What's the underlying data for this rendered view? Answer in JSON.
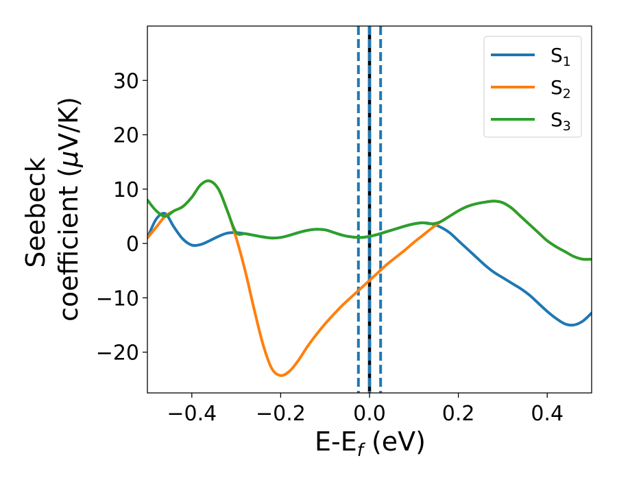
{
  "chart_data": {
    "type": "line",
    "xlabel": {
      "main": "E-E",
      "sub": "f",
      "unit": " (eV)"
    },
    "ylabel": {
      "line1": "Seebeck",
      "line2_pre": "coefficient  (",
      "mu": "μ",
      "line2_post": "V/K)"
    },
    "xlim": [
      -0.5,
      0.5
    ],
    "ylim": [
      -27.5,
      40
    ],
    "xticks": [
      -0.4,
      -0.2,
      0.0,
      0.2,
      0.4
    ],
    "xtick_labels": [
      "−0.4",
      "−0.2",
      "0.0",
      "0.2",
      "0.4"
    ],
    "yticks": [
      -20,
      -10,
      0,
      10,
      20,
      30
    ],
    "ytick_labels": [
      "−20",
      "−10",
      "0",
      "10",
      "20",
      "30"
    ],
    "legend_position": "top-right",
    "vlines": [
      {
        "x": -0.025,
        "style": "dashed",
        "color": "#1f77b4"
      },
      {
        "x": 0.0,
        "style": "solid",
        "color": "#000000"
      },
      {
        "x": 0.0,
        "style": "dashed",
        "color": "#1f77b4"
      },
      {
        "x": 0.025,
        "style": "dashed",
        "color": "#1f77b4"
      }
    ],
    "series": [
      {
        "name": "S",
        "sub": "1",
        "color": "#1f77b4",
        "points": [
          [
            -0.5,
            1
          ],
          [
            -0.48,
            4.5
          ],
          [
            -0.46,
            5.5
          ],
          [
            -0.44,
            3
          ],
          [
            -0.42,
            0.8
          ],
          [
            -0.4,
            -0.3
          ],
          [
            -0.38,
            -0.2
          ],
          [
            -0.36,
            0.5
          ],
          [
            -0.34,
            1.3
          ],
          [
            -0.32,
            1.9
          ],
          [
            -0.3,
            2
          ],
          [
            -0.28,
            1.8
          ],
          [
            -0.26,
            1.5
          ],
          [
            -0.24,
            1.2
          ],
          [
            -0.22,
            1
          ],
          [
            -0.2,
            1.1
          ],
          [
            -0.18,
            1.5
          ],
          [
            -0.16,
            2
          ],
          [
            -0.14,
            2.4
          ],
          [
            -0.12,
            2.6
          ],
          [
            -0.1,
            2.5
          ],
          [
            -0.08,
            2
          ],
          [
            -0.06,
            1.5
          ],
          [
            -0.04,
            1.2
          ],
          [
            -0.02,
            1.1
          ],
          [
            0,
            1.3
          ],
          [
            0.02,
            1.7
          ],
          [
            0.04,
            2.2
          ],
          [
            0.06,
            2.7
          ],
          [
            0.08,
            3.2
          ],
          [
            0.1,
            3.6
          ],
          [
            0.12,
            3.8
          ],
          [
            0.14,
            3.6
          ],
          [
            0.16,
            3
          ],
          [
            0.18,
            2
          ],
          [
            0.2,
            0.5
          ],
          [
            0.22,
            -1
          ],
          [
            0.24,
            -2.5
          ],
          [
            0.26,
            -4
          ],
          [
            0.28,
            -5.3
          ],
          [
            0.3,
            -6.3
          ],
          [
            0.32,
            -7.3
          ],
          [
            0.34,
            -8.3
          ],
          [
            0.36,
            -9.5
          ],
          [
            0.38,
            -11
          ],
          [
            0.4,
            -12.5
          ],
          [
            0.42,
            -13.8
          ],
          [
            0.44,
            -14.8
          ],
          [
            0.46,
            -15
          ],
          [
            0.48,
            -14.3
          ],
          [
            0.5,
            -12.8
          ]
        ]
      },
      {
        "name": "S",
        "sub": "2",
        "color": "#ff7f0e",
        "points": [
          [
            -0.5,
            1
          ],
          [
            -0.48,
            3
          ],
          [
            -0.46,
            5
          ],
          [
            -0.44,
            6
          ],
          [
            -0.42,
            6.8
          ],
          [
            -0.4,
            8.5
          ],
          [
            -0.38,
            10.8
          ],
          [
            -0.36,
            11.5
          ],
          [
            -0.34,
            10
          ],
          [
            -0.32,
            6
          ],
          [
            -0.3,
            1
          ],
          [
            -0.28,
            -5
          ],
          [
            -0.26,
            -12
          ],
          [
            -0.24,
            -18.5
          ],
          [
            -0.22,
            -23
          ],
          [
            -0.2,
            -24.3
          ],
          [
            -0.18,
            -23.5
          ],
          [
            -0.16,
            -21.5
          ],
          [
            -0.14,
            -19
          ],
          [
            -0.12,
            -16.8
          ],
          [
            -0.1,
            -14.8
          ],
          [
            -0.08,
            -13
          ],
          [
            -0.06,
            -11.3
          ],
          [
            -0.04,
            -9.8
          ],
          [
            -0.02,
            -8.3
          ],
          [
            0,
            -6.8
          ],
          [
            0.02,
            -5.3
          ],
          [
            0.04,
            -3.8
          ],
          [
            0.06,
            -2.5
          ],
          [
            0.08,
            -1.2
          ],
          [
            0.1,
            0.2
          ],
          [
            0.12,
            1.5
          ],
          [
            0.14,
            2.8
          ],
          [
            0.16,
            4
          ],
          [
            0.18,
            5
          ],
          [
            0.2,
            6
          ],
          [
            0.22,
            6.8
          ],
          [
            0.24,
            7.3
          ],
          [
            0.26,
            7.6
          ],
          [
            0.28,
            7.8
          ],
          [
            0.3,
            7.5
          ],
          [
            0.32,
            6.5
          ],
          [
            0.34,
            5
          ],
          [
            0.36,
            3.5
          ],
          [
            0.38,
            2
          ],
          [
            0.4,
            0.5
          ],
          [
            0.42,
            -0.6
          ],
          [
            0.44,
            -1.5
          ],
          [
            0.46,
            -2.4
          ],
          [
            0.48,
            -2.9
          ],
          [
            0.5,
            -2.9
          ]
        ]
      },
      {
        "name": "S",
        "sub": "3",
        "color": "#2ca02c",
        "points": [
          [
            -0.5,
            8
          ],
          [
            -0.48,
            6
          ],
          [
            -0.46,
            5
          ],
          [
            -0.44,
            6
          ],
          [
            -0.42,
            6.8
          ],
          [
            -0.4,
            8.5
          ],
          [
            -0.38,
            10.8
          ],
          [
            -0.36,
            11.5
          ],
          [
            -0.34,
            10
          ],
          [
            -0.32,
            6
          ],
          [
            -0.3,
            2
          ],
          [
            -0.28,
            1.8
          ],
          [
            -0.26,
            1.5
          ],
          [
            -0.24,
            1.2
          ],
          [
            -0.22,
            1
          ],
          [
            -0.2,
            1.1
          ],
          [
            -0.18,
            1.5
          ],
          [
            -0.16,
            2
          ],
          [
            -0.14,
            2.4
          ],
          [
            -0.12,
            2.6
          ],
          [
            -0.1,
            2.5
          ],
          [
            -0.08,
            2
          ],
          [
            -0.06,
            1.5
          ],
          [
            -0.04,
            1.2
          ],
          [
            -0.02,
            1.1
          ],
          [
            0,
            1.3
          ],
          [
            0.02,
            1.7
          ],
          [
            0.04,
            2.2
          ],
          [
            0.06,
            2.7
          ],
          [
            0.08,
            3.2
          ],
          [
            0.1,
            3.6
          ],
          [
            0.12,
            3.8
          ],
          [
            0.14,
            3.6
          ],
          [
            0.16,
            4
          ],
          [
            0.18,
            5
          ],
          [
            0.2,
            6
          ],
          [
            0.22,
            6.8
          ],
          [
            0.24,
            7.3
          ],
          [
            0.26,
            7.6
          ],
          [
            0.28,
            7.8
          ],
          [
            0.3,
            7.5
          ],
          [
            0.32,
            6.5
          ],
          [
            0.34,
            5
          ],
          [
            0.36,
            3.5
          ],
          [
            0.38,
            2
          ],
          [
            0.4,
            0.5
          ],
          [
            0.42,
            -0.6
          ],
          [
            0.44,
            -1.5
          ],
          [
            0.46,
            -2.4
          ],
          [
            0.48,
            -2.9
          ],
          [
            0.5,
            -2.9
          ]
        ]
      }
    ]
  }
}
